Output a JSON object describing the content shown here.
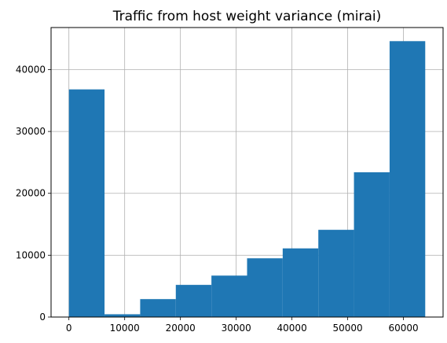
{
  "chart_data": {
    "type": "bar",
    "title": "Traffic from host weight variance (mirai)",
    "xlabel": "",
    "ylabel": "",
    "bin_edges": [
      0,
      6390,
      12780,
      19170,
      25560,
      31950,
      38340,
      44730,
      51120,
      57510,
      63900
    ],
    "values": [
      36800,
      450,
      2900,
      5200,
      6700,
      9500,
      11100,
      14100,
      23400,
      44600
    ],
    "xlim": [
      -3200,
      67100
    ],
    "ylim": [
      0,
      46800
    ],
    "x_ticks": [
      0,
      10000,
      20000,
      30000,
      40000,
      50000,
      60000
    ],
    "y_ticks": [
      0,
      10000,
      20000,
      30000,
      40000
    ],
    "grid": true,
    "bar_color": "#1f77b4",
    "grid_color": "#b0b0b0"
  }
}
